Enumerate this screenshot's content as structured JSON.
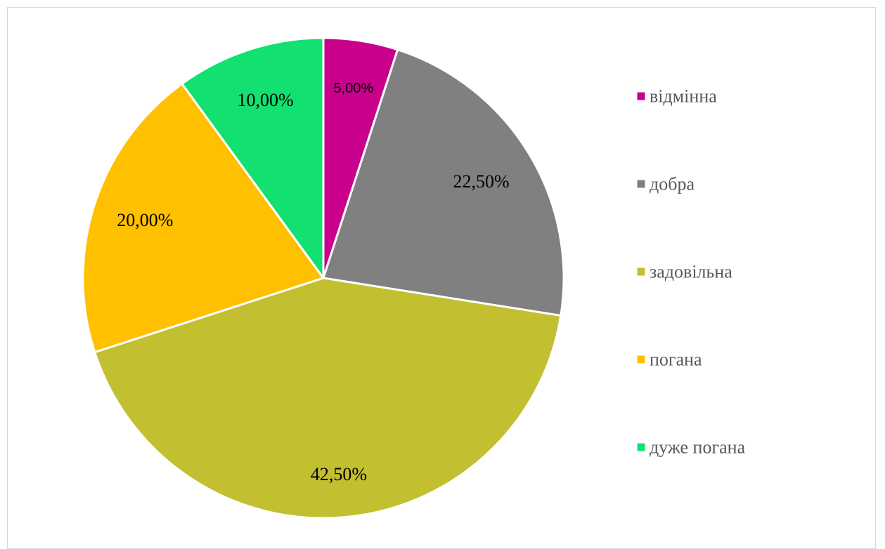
{
  "chart_data": {
    "type": "pie",
    "categories": [
      "відмінна",
      "добра",
      "задовільна",
      "погана",
      "дуже погана"
    ],
    "values": [
      5.0,
      22.5,
      42.5,
      20.0,
      10.0
    ],
    "data_labels": [
      "5,00%",
      "22,50%",
      "42,50%",
      "20,00%",
      "10,00%"
    ],
    "colors": [
      "#c8008c",
      "#808080",
      "#c2bf30",
      "#ffc000",
      "#12e070"
    ],
    "start_angle_deg": 0,
    "direction": "clockwise",
    "legend_position": "right",
    "title": ""
  }
}
